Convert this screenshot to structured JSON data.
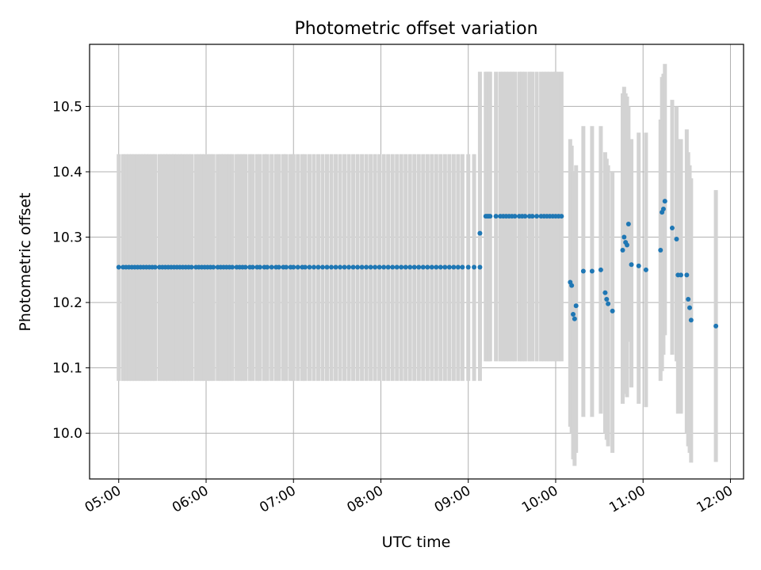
{
  "chart_data": {
    "type": "scatter",
    "title": "Photometric offset variation",
    "xlabel": "UTC time",
    "ylabel": "Photometric offset",
    "xlim": [
      "04:40",
      "12:09"
    ],
    "ylim": [
      9.93,
      10.595
    ],
    "grid": true,
    "x_ticks": [
      "05:00",
      "06:00",
      "07:00",
      "08:00",
      "09:00",
      "10:00",
      "11:00",
      "12:00"
    ],
    "y_ticks": [
      "10.0",
      "10.1",
      "10.2",
      "10.3",
      "10.4",
      "10.5"
    ],
    "y_tick_values": [
      10.0,
      10.1,
      10.2,
      10.3,
      10.4,
      10.5
    ],
    "colors": {
      "points": "#1f77b4",
      "error_bars": "#d3d3d3",
      "grid": "#b0b0b0"
    },
    "series": [
      {
        "segment": "05:00–09:08, constant offset",
        "error_bar_range": [
          10.08,
          10.427
        ],
        "points": [
          [
            "05:00",
            10.254
          ],
          [
            "05:03",
            10.254
          ],
          [
            "05:05",
            10.254
          ],
          [
            "05:07",
            10.254
          ],
          [
            "05:09",
            10.254
          ],
          [
            "05:11",
            10.254
          ],
          [
            "05:13",
            10.254
          ],
          [
            "05:15",
            10.254
          ],
          [
            "05:17",
            10.254
          ],
          [
            "05:19",
            10.254
          ],
          [
            "05:21",
            10.254
          ],
          [
            "05:23",
            10.254
          ],
          [
            "05:25",
            10.254
          ],
          [
            "05:28",
            10.254
          ],
          [
            "05:30",
            10.254
          ],
          [
            "05:32",
            10.254
          ],
          [
            "05:34",
            10.254
          ],
          [
            "05:36",
            10.254
          ],
          [
            "05:38",
            10.254
          ],
          [
            "05:40",
            10.254
          ],
          [
            "05:42",
            10.254
          ],
          [
            "05:44",
            10.254
          ],
          [
            "05:46",
            10.254
          ],
          [
            "05:48",
            10.254
          ],
          [
            "05:50",
            10.254
          ],
          [
            "05:53",
            10.254
          ],
          [
            "05:55",
            10.254
          ],
          [
            "05:57",
            10.254
          ],
          [
            "05:59",
            10.254
          ],
          [
            "06:01",
            10.254
          ],
          [
            "06:03",
            10.254
          ],
          [
            "06:05",
            10.254
          ],
          [
            "06:08",
            10.254
          ],
          [
            "06:10",
            10.254
          ],
          [
            "06:12",
            10.254
          ],
          [
            "06:14",
            10.254
          ],
          [
            "06:16",
            10.254
          ],
          [
            "06:18",
            10.254
          ],
          [
            "06:21",
            10.254
          ],
          [
            "06:23",
            10.254
          ],
          [
            "06:25",
            10.254
          ],
          [
            "06:27",
            10.254
          ],
          [
            "06:30",
            10.254
          ],
          [
            "06:32",
            10.254
          ],
          [
            "06:35",
            10.254
          ],
          [
            "06:37",
            10.254
          ],
          [
            "06:40",
            10.254
          ],
          [
            "06:42",
            10.254
          ],
          [
            "06:45",
            10.254
          ],
          [
            "06:48",
            10.254
          ],
          [
            "06:50",
            10.254
          ],
          [
            "06:53",
            10.254
          ],
          [
            "06:55",
            10.254
          ],
          [
            "06:58",
            10.254
          ],
          [
            "07:00",
            10.254
          ],
          [
            "07:03",
            10.254
          ],
          [
            "07:06",
            10.254
          ],
          [
            "07:08",
            10.254
          ],
          [
            "07:11",
            10.254
          ],
          [
            "07:14",
            10.254
          ],
          [
            "07:17",
            10.254
          ],
          [
            "07:20",
            10.254
          ],
          [
            "07:23",
            10.254
          ],
          [
            "07:26",
            10.254
          ],
          [
            "07:29",
            10.254
          ],
          [
            "07:32",
            10.254
          ],
          [
            "07:35",
            10.254
          ],
          [
            "07:38",
            10.254
          ],
          [
            "07:41",
            10.254
          ],
          [
            "07:44",
            10.254
          ],
          [
            "07:47",
            10.254
          ],
          [
            "07:50",
            10.254
          ],
          [
            "07:53",
            10.254
          ],
          [
            "07:56",
            10.254
          ],
          [
            "07:59",
            10.254
          ],
          [
            "08:02",
            10.254
          ],
          [
            "08:05",
            10.254
          ],
          [
            "08:08",
            10.254
          ],
          [
            "08:11",
            10.254
          ],
          [
            "08:14",
            10.254
          ],
          [
            "08:17",
            10.254
          ],
          [
            "08:20",
            10.254
          ],
          [
            "08:23",
            10.254
          ],
          [
            "08:26",
            10.254
          ],
          [
            "08:29",
            10.254
          ],
          [
            "08:32",
            10.254
          ],
          [
            "08:35",
            10.254
          ],
          [
            "08:38",
            10.254
          ],
          [
            "08:41",
            10.254
          ],
          [
            "08:44",
            10.254
          ],
          [
            "08:47",
            10.254
          ],
          [
            "08:50",
            10.254
          ],
          [
            "08:53",
            10.254
          ],
          [
            "08:56",
            10.254
          ],
          [
            "09:00",
            10.254
          ],
          [
            "09:04",
            10.254
          ],
          [
            "09:08",
            10.254
          ]
        ]
      },
      {
        "segment": "09:08–10:05",
        "error_bar_range": [
          10.11,
          10.553
        ],
        "points": [
          [
            "09:08",
            10.306
          ],
          [
            "09:12",
            10.332
          ],
          [
            "09:13",
            10.332
          ],
          [
            "09:14",
            10.332
          ],
          [
            "09:15",
            10.332
          ],
          [
            "09:19",
            10.332
          ],
          [
            "09:22",
            10.332
          ],
          [
            "09:24",
            10.332
          ],
          [
            "09:26",
            10.332
          ],
          [
            "09:28",
            10.332
          ],
          [
            "09:30",
            10.332
          ],
          [
            "09:32",
            10.332
          ],
          [
            "09:35",
            10.332
          ],
          [
            "09:37",
            10.332
          ],
          [
            "09:39",
            10.332
          ],
          [
            "09:42",
            10.332
          ],
          [
            "09:44",
            10.332
          ],
          [
            "09:47",
            10.332
          ],
          [
            "09:50",
            10.332
          ],
          [
            "09:52",
            10.332
          ],
          [
            "09:54",
            10.332
          ],
          [
            "09:56",
            10.332
          ],
          [
            "09:58",
            10.332
          ],
          [
            "10:00",
            10.332
          ],
          [
            "10:02",
            10.332
          ],
          [
            "10:04",
            10.332
          ]
        ]
      },
      {
        "segment": "10:05–11:50, variable offsets",
        "points": [
          [
            "10:10",
            10.231,
            10.45,
            10.01
          ],
          [
            "10:11",
            10.226,
            10.44,
            10.0
          ],
          [
            "10:12",
            10.182,
            10.4,
            9.96
          ],
          [
            "10:13",
            10.175,
            10.39,
            9.95
          ],
          [
            "10:14",
            10.195,
            10.41,
            9.97
          ],
          [
            "10:19",
            10.248,
            10.47,
            10.025
          ],
          [
            "10:25",
            10.248,
            10.47,
            10.025
          ],
          [
            "10:31",
            10.25,
            10.47,
            10.03
          ],
          [
            "10:34",
            10.215,
            10.43,
            10.0
          ],
          [
            "10:35",
            10.205,
            10.42,
            9.99
          ],
          [
            "10:36",
            10.198,
            10.41,
            9.98
          ],
          [
            "10:39",
            10.187,
            10.4,
            9.97
          ],
          [
            "10:46",
            10.28,
            10.52,
            10.045
          ],
          [
            "10:47",
            10.3,
            10.53,
            10.07
          ],
          [
            "10:48",
            10.292,
            10.52,
            10.06
          ],
          [
            "10:49",
            10.288,
            10.515,
            10.055
          ],
          [
            "10:50",
            10.32,
            10.5,
            10.14
          ],
          [
            "10:52",
            10.258,
            10.45,
            10.07
          ],
          [
            "10:57",
            10.256,
            10.46,
            10.045
          ],
          [
            "11:02",
            10.25,
            10.46,
            10.04
          ],
          [
            "11:12",
            10.28,
            10.48,
            10.08
          ],
          [
            "11:13",
            10.338,
            10.545,
            10.095
          ],
          [
            "11:14",
            10.343,
            10.55,
            10.12
          ],
          [
            "11:15",
            10.355,
            10.565,
            10.15
          ],
          [
            "11:20",
            10.314,
            10.51,
            10.12
          ],
          [
            "11:23",
            10.297,
            10.5,
            10.11
          ],
          [
            "11:24",
            10.242,
            10.45,
            10.03
          ],
          [
            "11:26",
            10.242,
            10.45,
            10.03
          ],
          [
            "11:30",
            10.242,
            10.465,
            10.0
          ],
          [
            "11:31",
            10.205,
            10.43,
            9.98
          ],
          [
            "11:32",
            10.192,
            10.41,
            9.97
          ],
          [
            "11:33",
            10.173,
            10.39,
            9.955
          ],
          [
            "11:50",
            10.164,
            10.372,
            9.956
          ]
        ]
      }
    ]
  }
}
